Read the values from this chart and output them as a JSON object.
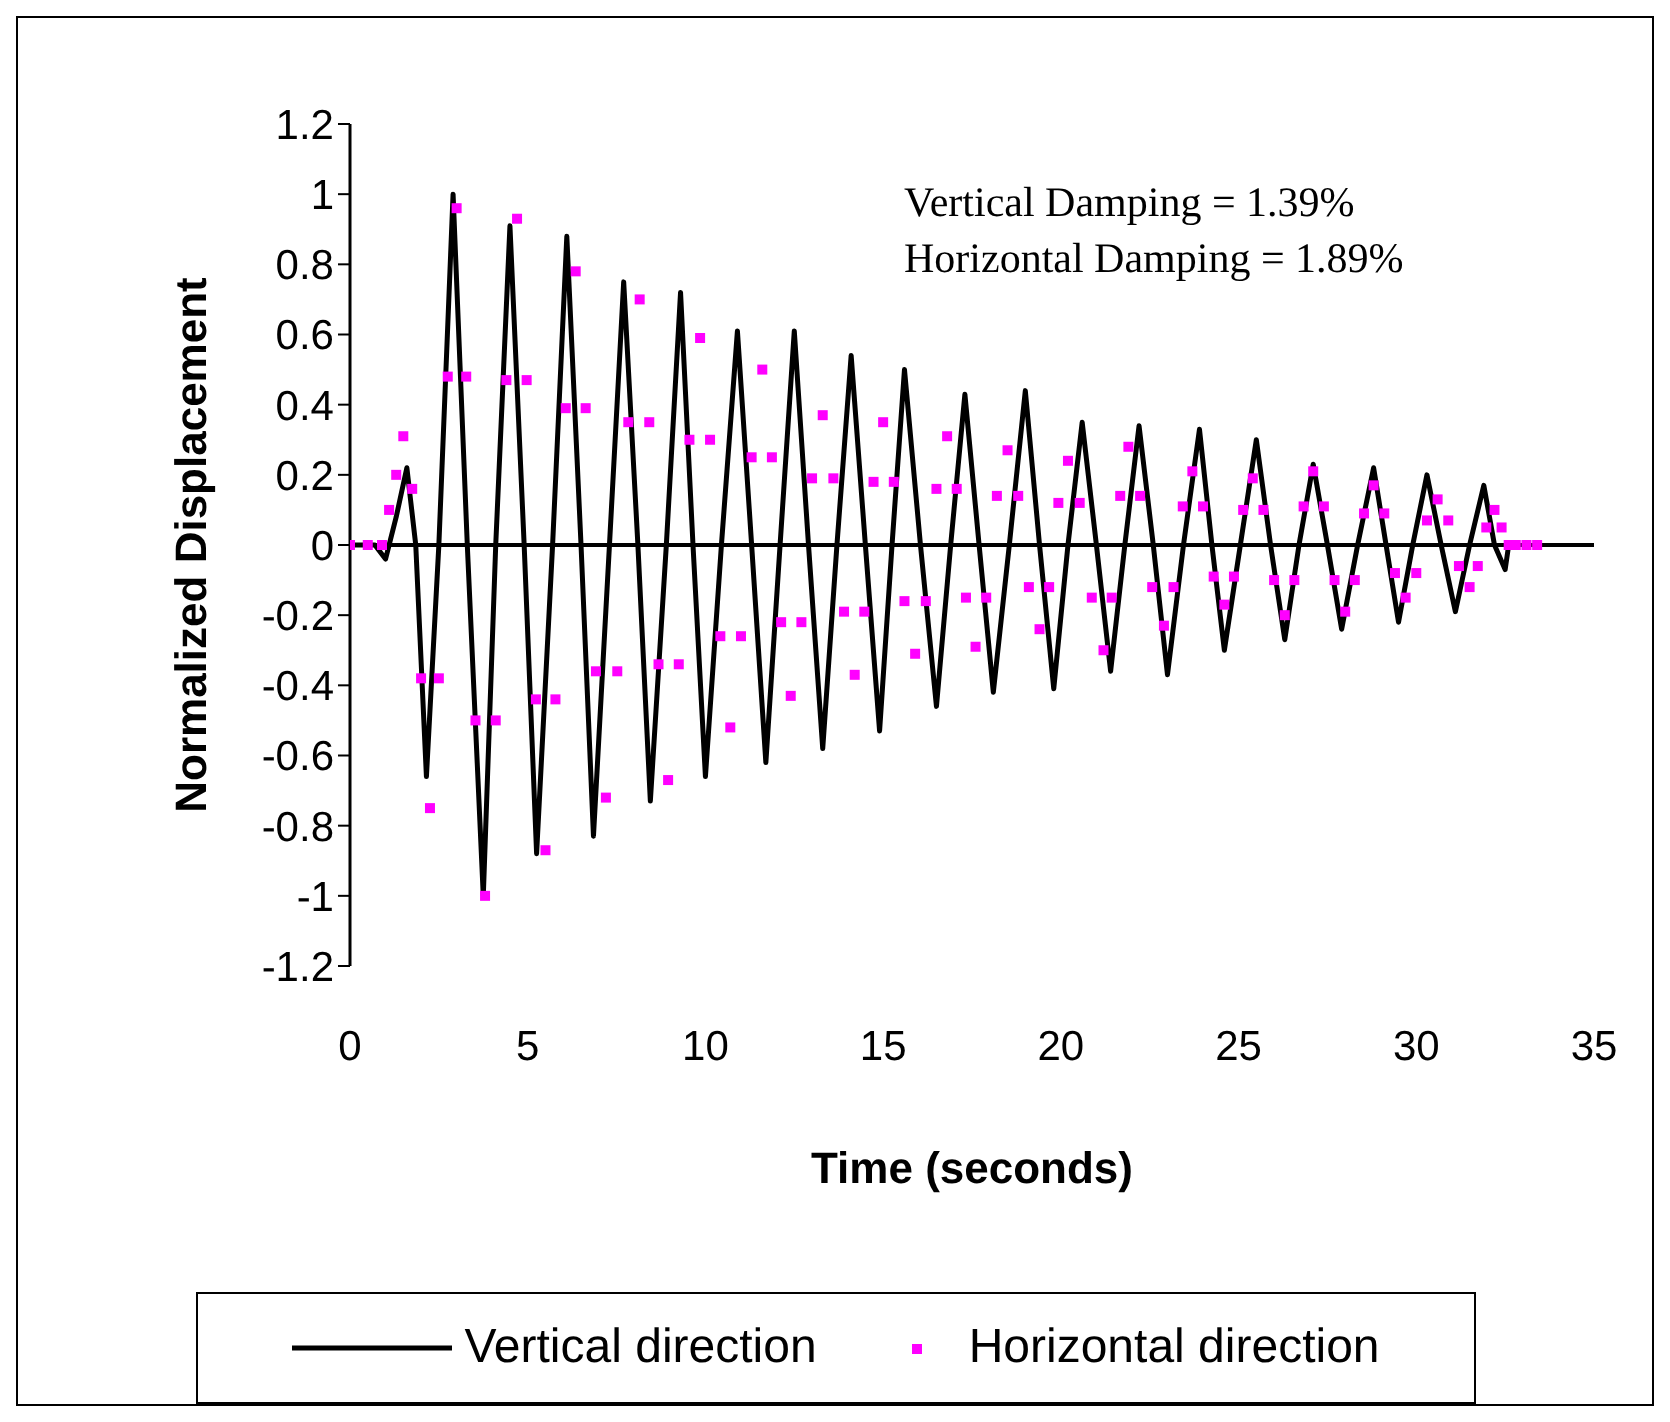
{
  "chart_data": {
    "type": "line",
    "xlabel": "Time (seconds)",
    "ylabel": "Normalized Displacement",
    "annotations": [
      "Vertical Damping = 1.39%",
      "Horizontal Damping = 1.89%"
    ],
    "xlim": [
      0,
      35
    ],
    "xticks": [
      0,
      5,
      10,
      15,
      20,
      25,
      30,
      35
    ],
    "ylim": [
      -1.2,
      1.2
    ],
    "yticks": [
      -1.2,
      -1,
      -0.8,
      -0.6,
      -0.4,
      -0.2,
      0,
      0.2,
      0.4,
      0.6,
      0.8,
      1,
      1.2
    ],
    "grid": false,
    "legend": "bottom",
    "ref_lines": [
      {
        "axis": "y",
        "value": 0,
        "color": "#000000"
      }
    ],
    "series": [
      {
        "name": "Vertical direction",
        "color": "#000000",
        "marker": "none",
        "line_style": "solid",
        "x": [
          0,
          0.7,
          1.0,
          1.3,
          1.6,
          1.85,
          2.15,
          2.5,
          2.9,
          3.3,
          3.75,
          4.1,
          4.5,
          4.9,
          5.25,
          5.7,
          6.1,
          6.5,
          6.85,
          7.3,
          7.7,
          8.1,
          8.45,
          8.9,
          9.3,
          9.65,
          10.0,
          10.45,
          10.9,
          11.3,
          11.7,
          12.1,
          12.5,
          12.9,
          13.3,
          13.7,
          14.1,
          14.5,
          14.9,
          15.25,
          15.6,
          16.05,
          16.5,
          16.9,
          17.3,
          17.7,
          18.1,
          18.55,
          19.0,
          19.4,
          19.8,
          20.2,
          20.6,
          21.0,
          21.4,
          21.8,
          22.2,
          22.6,
          23.0,
          23.45,
          23.9,
          24.25,
          24.6,
          25.05,
          25.5,
          25.9,
          26.3,
          26.7,
          27.1,
          27.5,
          27.9,
          28.35,
          28.8,
          29.15,
          29.5,
          29.9,
          30.3,
          30.7,
          31.1,
          31.5,
          31.9,
          32.2,
          32.5,
          32.6
        ],
        "values": [
          0,
          0,
          -0.04,
          0.08,
          0.22,
          0,
          -0.66,
          0,
          1.0,
          0,
          -1.0,
          0,
          0.91,
          0,
          -0.88,
          0,
          0.88,
          0,
          -0.83,
          0,
          0.75,
          0,
          -0.73,
          0,
          0.72,
          0,
          -0.66,
          0,
          0.61,
          0,
          -0.62,
          0,
          0.61,
          0,
          -0.58,
          0,
          0.54,
          0,
          -0.53,
          0,
          0.5,
          0,
          -0.46,
          0,
          0.43,
          0,
          -0.42,
          0,
          0.44,
          0,
          -0.41,
          0,
          0.35,
          0,
          -0.36,
          0,
          0.34,
          0,
          -0.37,
          0,
          0.33,
          0,
          -0.3,
          0,
          0.3,
          0,
          -0.27,
          0,
          0.23,
          0,
          -0.24,
          0,
          0.22,
          0,
          -0.22,
          0,
          0.2,
          0,
          -0.19,
          0,
          0.17,
          0,
          -0.07,
          0
        ]
      },
      {
        "name": "Horizontal direction",
        "type": "scatter",
        "color": "#ff00ff",
        "marker": "square",
        "x": [
          0,
          0.5,
          0.9,
          1.1,
          1.3,
          1.5,
          1.75,
          2.0,
          2.25,
          2.5,
          2.75,
          3.0,
          3.27,
          3.53,
          3.8,
          4.1,
          4.4,
          4.7,
          4.97,
          5.23,
          5.5,
          5.78,
          6.07,
          6.35,
          6.63,
          6.92,
          7.2,
          7.52,
          7.83,
          8.15,
          8.42,
          8.68,
          8.95,
          9.25,
          9.55,
          9.85,
          10.13,
          10.42,
          10.7,
          11.0,
          11.3,
          11.6,
          11.87,
          12.13,
          12.4,
          12.7,
          13.0,
          13.3,
          13.6,
          13.9,
          14.2,
          14.47,
          14.73,
          15.0,
          15.3,
          15.6,
          15.9,
          16.2,
          16.5,
          16.8,
          17.07,
          17.33,
          17.6,
          17.9,
          18.2,
          18.5,
          18.8,
          19.1,
          19.4,
          19.67,
          19.93,
          20.2,
          20.53,
          20.87,
          21.2,
          21.43,
          21.67,
          21.9,
          22.23,
          22.57,
          22.9,
          23.17,
          23.43,
          23.7,
          24.0,
          24.3,
          24.6,
          24.87,
          25.13,
          25.4,
          25.7,
          26.0,
          26.3,
          26.57,
          26.83,
          27.1,
          27.4,
          27.7,
          28.0,
          28.27,
          28.53,
          28.8,
          29.1,
          29.4,
          29.7,
          30.0,
          30.3,
          30.6,
          30.9,
          31.2,
          31.5,
          31.73,
          31.97,
          32.2,
          32.4,
          32.6,
          32.8,
          33.1,
          33.4
        ],
        "values": [
          0,
          0,
          0,
          0.1,
          0.2,
          0.31,
          0.16,
          -0.38,
          -0.75,
          -0.38,
          0.48,
          0.96,
          0.48,
          -0.5,
          -1.0,
          -0.5,
          0.47,
          0.93,
          0.47,
          -0.44,
          -0.87,
          -0.44,
          0.39,
          0.78,
          0.39,
          -0.36,
          -0.72,
          -0.36,
          0.35,
          0.7,
          0.35,
          -0.34,
          -0.67,
          -0.34,
          0.3,
          0.59,
          0.3,
          -0.26,
          -0.52,
          -0.26,
          0.25,
          0.5,
          0.25,
          -0.22,
          -0.43,
          -0.22,
          0.19,
          0.37,
          0.19,
          -0.19,
          -0.37,
          -0.19,
          0.18,
          0.35,
          0.18,
          -0.16,
          -0.31,
          -0.16,
          0.16,
          0.31,
          0.16,
          -0.15,
          -0.29,
          -0.15,
          0.14,
          0.27,
          0.14,
          -0.12,
          -0.24,
          -0.12,
          0.12,
          0.24,
          0.12,
          -0.15,
          -0.3,
          -0.15,
          0.14,
          0.28,
          0.14,
          -0.12,
          -0.23,
          -0.12,
          0.11,
          0.21,
          0.11,
          -0.09,
          -0.17,
          -0.09,
          0.1,
          0.19,
          0.1,
          -0.1,
          -0.2,
          -0.1,
          0.11,
          0.21,
          0.11,
          -0.1,
          -0.19,
          -0.1,
          0.09,
          0.17,
          0.09,
          -0.08,
          -0.15,
          -0.08,
          0.07,
          0.13,
          0.07,
          -0.06,
          -0.12,
          -0.06,
          0.05,
          0.1,
          0.05,
          0,
          0,
          0,
          0
        ]
      }
    ]
  }
}
